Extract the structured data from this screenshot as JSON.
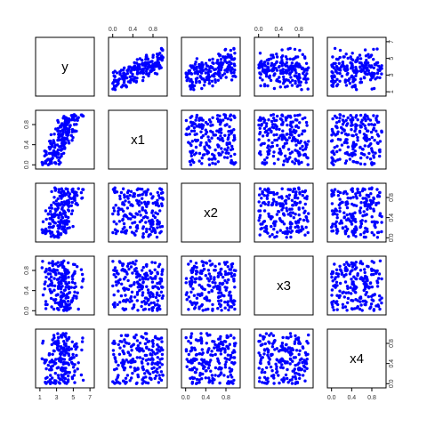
{
  "chart_data": {
    "type": "scatter",
    "title": "",
    "variables": [
      "y",
      "x1",
      "x2",
      "x3",
      "x4"
    ],
    "ranges": {
      "y": [
        0.8,
        7.2
      ],
      "x1": [
        -0.03,
        1.03
      ],
      "x2": [
        -0.03,
        1.03
      ],
      "x3": [
        -0.03,
        1.03
      ],
      "x4": [
        -0.03,
        1.03
      ]
    },
    "ticks": {
      "y": [
        1,
        3,
        5,
        7
      ],
      "y_right": [
        1,
        3,
        5,
        7
      ],
      "x1": [
        0.0,
        0.4,
        0.8
      ],
      "x2": [
        0.0,
        0.4,
        0.8
      ],
      "x3": [
        0.0,
        0.4,
        0.8
      ],
      "x4": [
        0.0,
        0.4,
        0.8
      ]
    },
    "tick_labels": {
      "y": [
        "1",
        "3",
        "5",
        "7"
      ],
      "y_right": [
        "1",
        "3",
        "5",
        "7"
      ],
      "x1": [
        "0.0",
        "0.4",
        "0.8"
      ],
      "x2": [
        "0.0",
        "0.4",
        "0.8"
      ],
      "x3": [
        "0.0",
        "0.4",
        "0.8"
      ],
      "x4": [
        "0.0",
        "0.4",
        "0.8"
      ]
    },
    "point_color": "#0000ff",
    "grid": false,
    "legend": "none",
    "n_points": 200,
    "relationship": "y increases roughly linearly with x1 and x2; x3 and x4 uncorrelated"
  }
}
